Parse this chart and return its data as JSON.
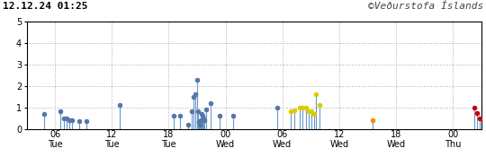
{
  "title_left": "12.12.24 01:25",
  "title_right": "©Veðurstofa Íslands",
  "xlim": [
    0,
    48
  ],
  "ylim": [
    0,
    5
  ],
  "yticks": [
    0,
    1,
    2,
    3,
    4,
    5
  ],
  "xticks": [
    3,
    9,
    15,
    21,
    27,
    33,
    39,
    45
  ],
  "xtick_labels": [
    "06\nTue",
    "12\nTue",
    "18\nTue",
    "00\nWed",
    "06\nWed",
    "12\nWed",
    "18\nWed",
    "00\nThu"
  ],
  "background_color": "#ffffff",
  "grid_color": "#aaaaaa",
  "stem_color": "#6699cc",
  "earthquakes": [
    {
      "t": 1.8,
      "m": 0.7,
      "color": "#5577aa"
    },
    {
      "t": 3.5,
      "m": 0.8,
      "color": "#5577aa"
    },
    {
      "t": 3.9,
      "m": 0.5,
      "color": "#5577aa"
    },
    {
      "t": 4.2,
      "m": 0.5,
      "color": "#5577aa"
    },
    {
      "t": 4.5,
      "m": 0.4,
      "color": "#5577aa"
    },
    {
      "t": 4.8,
      "m": 0.4,
      "color": "#5577aa"
    },
    {
      "t": 5.5,
      "m": 0.35,
      "color": "#5577aa"
    },
    {
      "t": 6.3,
      "m": 0.35,
      "color": "#5577aa"
    },
    {
      "t": 9.8,
      "m": 1.1,
      "color": "#5577aa"
    },
    {
      "t": 15.5,
      "m": 0.6,
      "color": "#5577aa"
    },
    {
      "t": 16.2,
      "m": 0.6,
      "color": "#5577aa"
    },
    {
      "t": 17.0,
      "m": 0.2,
      "color": "#5577aa"
    },
    {
      "t": 17.4,
      "m": 0.8,
      "color": "#5577aa"
    },
    {
      "t": 17.65,
      "m": 1.5,
      "color": "#5577aa"
    },
    {
      "t": 17.82,
      "m": 1.6,
      "color": "#5577aa"
    },
    {
      "t": 17.95,
      "m": 2.3,
      "color": "#5577aa"
    },
    {
      "t": 18.05,
      "m": 0.8,
      "color": "#5577aa"
    },
    {
      "t": 18.15,
      "m": 0.3,
      "color": "#5577aa"
    },
    {
      "t": 18.25,
      "m": 0.2,
      "color": "#5577aa"
    },
    {
      "t": 18.35,
      "m": 0.4,
      "color": "#5577aa"
    },
    {
      "t": 18.45,
      "m": 0.7,
      "color": "#5577aa"
    },
    {
      "t": 18.55,
      "m": 0.6,
      "color": "#5577aa"
    },
    {
      "t": 18.65,
      "m": 0.5,
      "color": "#5577aa"
    },
    {
      "t": 18.75,
      "m": 0.4,
      "color": "#5577aa"
    },
    {
      "t": 18.95,
      "m": 0.9,
      "color": "#5577aa"
    },
    {
      "t": 19.4,
      "m": 1.2,
      "color": "#5577aa"
    },
    {
      "t": 20.4,
      "m": 0.6,
      "color": "#5577aa"
    },
    {
      "t": 21.8,
      "m": 0.6,
      "color": "#5577aa"
    },
    {
      "t": 26.5,
      "m": 1.0,
      "color": "#5577aa"
    },
    {
      "t": 27.9,
      "m": 0.8,
      "color": "#ddcc00"
    },
    {
      "t": 28.3,
      "m": 0.85,
      "color": "#ddcc00"
    },
    {
      "t": 28.8,
      "m": 1.0,
      "color": "#ddcc00"
    },
    {
      "t": 29.1,
      "m": 1.0,
      "color": "#ddcc00"
    },
    {
      "t": 29.5,
      "m": 1.0,
      "color": "#ddcc00"
    },
    {
      "t": 29.8,
      "m": 0.8,
      "color": "#ddcc00"
    },
    {
      "t": 30.1,
      "m": 0.8,
      "color": "#ddcc00"
    },
    {
      "t": 30.35,
      "m": 0.7,
      "color": "#ddcc00"
    },
    {
      "t": 30.55,
      "m": 1.6,
      "color": "#ddcc00"
    },
    {
      "t": 30.9,
      "m": 1.1,
      "color": "#ddcc00"
    },
    {
      "t": 36.5,
      "m": 0.4,
      "color": "#ff8800"
    },
    {
      "t": 47.3,
      "m": 1.0,
      "color": "#cc0000"
    },
    {
      "t": 47.6,
      "m": 0.75,
      "color": "#cc0000"
    },
    {
      "t": 47.85,
      "m": 0.5,
      "color": "#cc0000"
    }
  ]
}
